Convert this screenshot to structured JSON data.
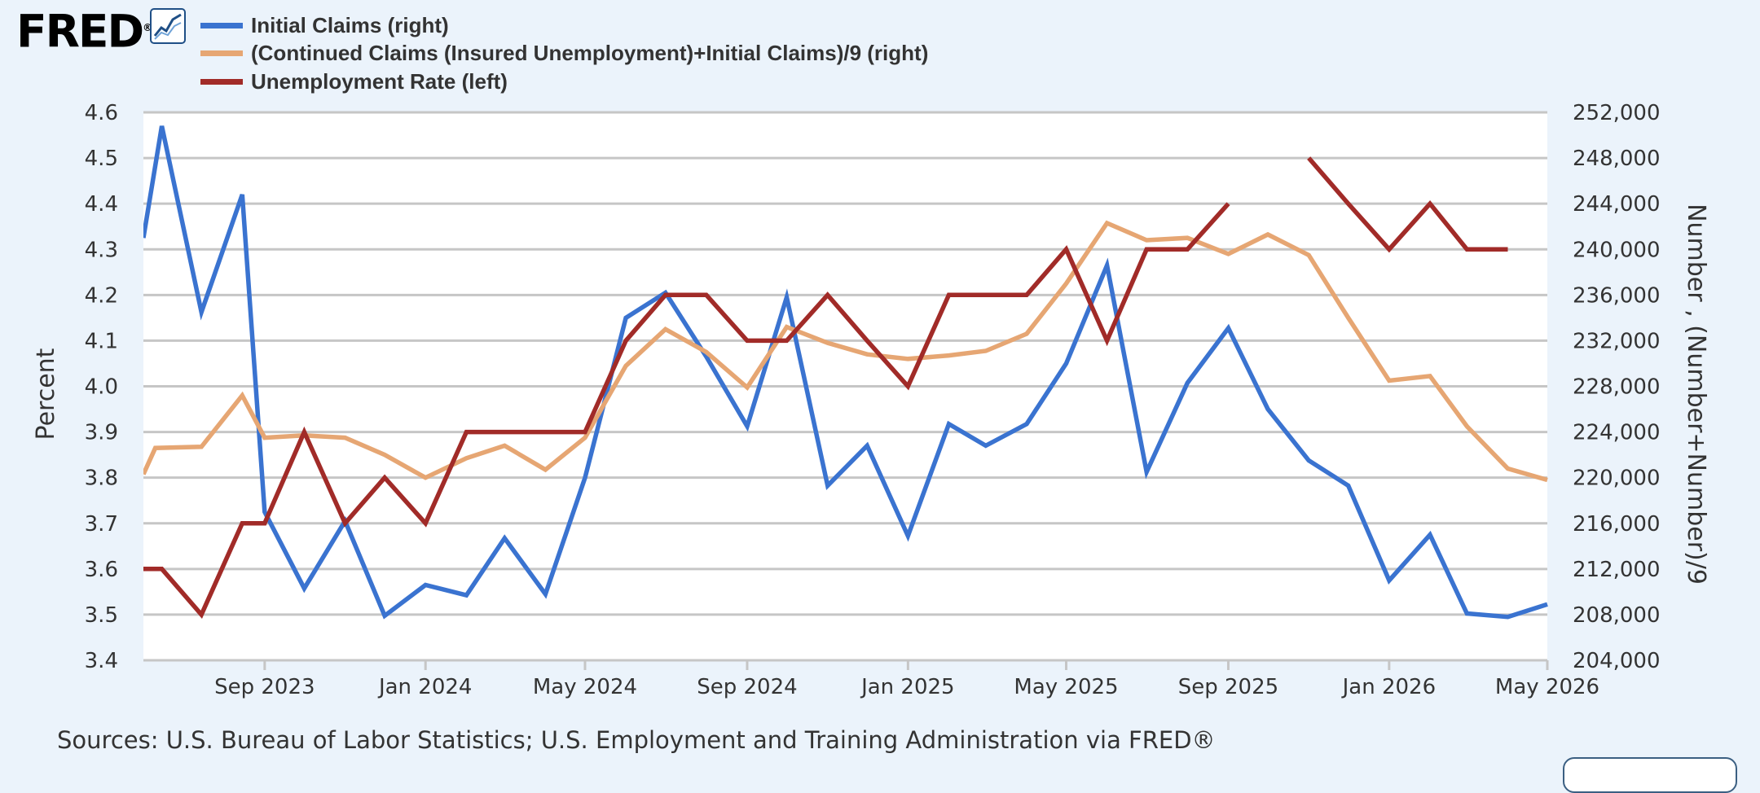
{
  "brand": {
    "name": "FRED",
    "mark": "®",
    "graph_icon": "line-chart-icon"
  },
  "legend": [
    {
      "label": "Initial Claims (right)",
      "color": "#3a73d0"
    },
    {
      "label": "(Continued Claims (Insured Unemployment)+Initial Claims)/9 (right)",
      "color": "#e6a673"
    },
    {
      "label": "Unemployment Rate (left)",
      "color": "#a12b28"
    }
  ],
  "source_text": "Sources: U.S. Bureau of Labor Statistics; U.S. Employment and Training Administration via FRED®",
  "chart_data": {
    "type": "line",
    "grid": true,
    "legend_position": "top-left",
    "x_axis": {
      "range": [
        "2023-06-01",
        "2026-05-01"
      ],
      "ticks": [
        {
          "date": "2023-09-01",
          "label": "Sep 2023"
        },
        {
          "date": "2024-01-01",
          "label": "Jan 2024"
        },
        {
          "date": "2024-05-01",
          "label": "May 2024"
        },
        {
          "date": "2024-09-01",
          "label": "Sep 2024"
        },
        {
          "date": "2025-01-01",
          "label": "Jan 2025"
        },
        {
          "date": "2025-05-01",
          "label": "May 2025"
        },
        {
          "date": "2025-09-01",
          "label": "Sep 2025"
        },
        {
          "date": "2026-01-01",
          "label": "Jan 2026"
        },
        {
          "date": "2026-05-01",
          "label": "May 2026"
        }
      ]
    },
    "y_left": {
      "label": "Percent",
      "range": [
        3.4,
        4.6
      ],
      "ticks": [
        "3.4",
        "3.5",
        "3.6",
        "3.7",
        "3.8",
        "3.9",
        "4.0",
        "4.1",
        "4.2",
        "4.3",
        "4.4",
        "4.5",
        "4.6"
      ]
    },
    "y_right": {
      "label": "Number , (Number+Number)/9",
      "range": [
        204000,
        252000
      ],
      "ticks": [
        "204,000",
        "208,000",
        "212,000",
        "216,000",
        "220,000",
        "224,000",
        "228,000",
        "232,000",
        "236,000",
        "240,000",
        "244,000",
        "248,000",
        "252,000"
      ]
    },
    "series": [
      {
        "name": "Initial Claims (right)",
        "axis": "right",
        "color": "#3a73d0",
        "points": [
          [
            "2023-06-01",
            241000
          ],
          [
            "2023-06-15",
            250800
          ],
          [
            "2023-07-15",
            234500
          ],
          [
            "2023-08-15",
            244800
          ],
          [
            "2023-09-01",
            217000
          ],
          [
            "2023-10-01",
            210300
          ],
          [
            "2023-11-01",
            216200
          ],
          [
            "2023-12-01",
            207900
          ],
          [
            "2024-01-01",
            210600
          ],
          [
            "2024-02-01",
            209700
          ],
          [
            "2024-03-01",
            214700
          ],
          [
            "2024-04-01",
            209800
          ],
          [
            "2024-05-01",
            220000
          ],
          [
            "2024-06-01",
            234000
          ],
          [
            "2024-07-01",
            236200
          ],
          [
            "2024-08-01",
            230600
          ],
          [
            "2024-09-01",
            224500
          ],
          [
            "2024-10-01",
            235800
          ],
          [
            "2024-11-01",
            219300
          ],
          [
            "2024-12-01",
            222800
          ],
          [
            "2025-01-01",
            214900
          ],
          [
            "2025-02-01",
            224700
          ],
          [
            "2025-03-01",
            222800
          ],
          [
            "2025-04-01",
            224700
          ],
          [
            "2025-05-01",
            230000
          ],
          [
            "2025-06-01",
            238600
          ],
          [
            "2025-07-01",
            220500
          ],
          [
            "2025-08-01",
            228300
          ],
          [
            "2025-09-01",
            233100
          ],
          [
            "2025-10-01",
            226000
          ],
          [
            "2025-11-01",
            221500
          ],
          [
            "2025-12-01",
            219300
          ],
          [
            "2026-01-01",
            211000
          ],
          [
            "2026-02-01",
            215000
          ],
          [
            "2026-03-01",
            208100
          ],
          [
            "2026-04-01",
            207800
          ],
          [
            "2026-05-01",
            208900
          ]
        ]
      },
      {
        "name": "(Continued Claims (Insured Unemployment)+Initial Claims)/9 (right)",
        "axis": "right",
        "color": "#e6a673",
        "points": [
          [
            "2023-06-01",
            220300
          ],
          [
            "2023-06-10",
            222600
          ],
          [
            "2023-07-15",
            222700
          ],
          [
            "2023-08-15",
            227200
          ],
          [
            "2023-09-01",
            223500
          ],
          [
            "2023-10-01",
            223700
          ],
          [
            "2023-11-01",
            223500
          ],
          [
            "2023-12-01",
            222000
          ],
          [
            "2024-01-01",
            220000
          ],
          [
            "2024-02-01",
            221700
          ],
          [
            "2024-03-01",
            222800
          ],
          [
            "2024-04-01",
            220700
          ],
          [
            "2024-05-01",
            223500
          ],
          [
            "2024-06-01",
            229800
          ],
          [
            "2024-07-01",
            233000
          ],
          [
            "2024-08-01",
            231000
          ],
          [
            "2024-09-01",
            227900
          ],
          [
            "2024-10-01",
            233200
          ],
          [
            "2024-11-01",
            231800
          ],
          [
            "2024-12-01",
            230800
          ],
          [
            "2025-01-01",
            230400
          ],
          [
            "2025-02-01",
            230700
          ],
          [
            "2025-03-01",
            231100
          ],
          [
            "2025-04-01",
            232600
          ],
          [
            "2025-05-01",
            237000
          ],
          [
            "2025-06-01",
            242300
          ],
          [
            "2025-07-01",
            240800
          ],
          [
            "2025-08-01",
            241000
          ],
          [
            "2025-09-01",
            239600
          ],
          [
            "2025-10-01",
            241300
          ],
          [
            "2025-11-01",
            239500
          ],
          [
            "2025-12-01",
            234000
          ],
          [
            "2026-01-01",
            228500
          ],
          [
            "2026-02-01",
            228900
          ],
          [
            "2026-03-01",
            224500
          ],
          [
            "2026-04-01",
            220800
          ],
          [
            "2026-05-01",
            219800
          ]
        ]
      },
      {
        "name": "Unemployment Rate (left)",
        "axis": "left",
        "color": "#a12b28",
        "points": [
          [
            "2023-06-01",
            3.6
          ],
          [
            "2023-06-15",
            3.6
          ],
          [
            "2023-07-15",
            3.5
          ],
          [
            "2023-08-15",
            3.7
          ],
          [
            "2023-09-01",
            3.7
          ],
          [
            "2023-10-01",
            3.9
          ],
          [
            "2023-11-01",
            3.7
          ],
          [
            "2023-12-01",
            3.8
          ],
          [
            "2024-01-01",
            3.7
          ],
          [
            "2024-02-01",
            3.9
          ],
          [
            "2024-03-01",
            3.9
          ],
          [
            "2024-04-01",
            3.9
          ],
          [
            "2024-05-01",
            3.9
          ],
          [
            "2024-06-01",
            4.1
          ],
          [
            "2024-07-01",
            4.2
          ],
          [
            "2024-08-01",
            4.2
          ],
          [
            "2024-09-01",
            4.1
          ],
          [
            "2024-10-01",
            4.1
          ],
          [
            "2024-11-01",
            4.2
          ],
          [
            "2024-12-01",
            4.1
          ],
          [
            "2025-01-01",
            4.0
          ],
          [
            "2025-02-01",
            4.2
          ],
          [
            "2025-03-01",
            4.2
          ],
          [
            "2025-04-01",
            4.2
          ],
          [
            "2025-05-01",
            4.3
          ],
          [
            "2025-06-01",
            4.1
          ],
          [
            "2025-07-01",
            4.3
          ],
          [
            "2025-08-01",
            4.3
          ],
          [
            "2025-09-01",
            4.4
          ],
          [
            "2025-10-01",
            null
          ],
          [
            "2025-11-01",
            4.5
          ],
          [
            "2025-12-01",
            4.4
          ],
          [
            "2026-01-01",
            4.3
          ],
          [
            "2026-02-01",
            4.4
          ],
          [
            "2026-03-01",
            4.3
          ],
          [
            "2026-04-01",
            4.3
          ]
        ]
      }
    ]
  }
}
